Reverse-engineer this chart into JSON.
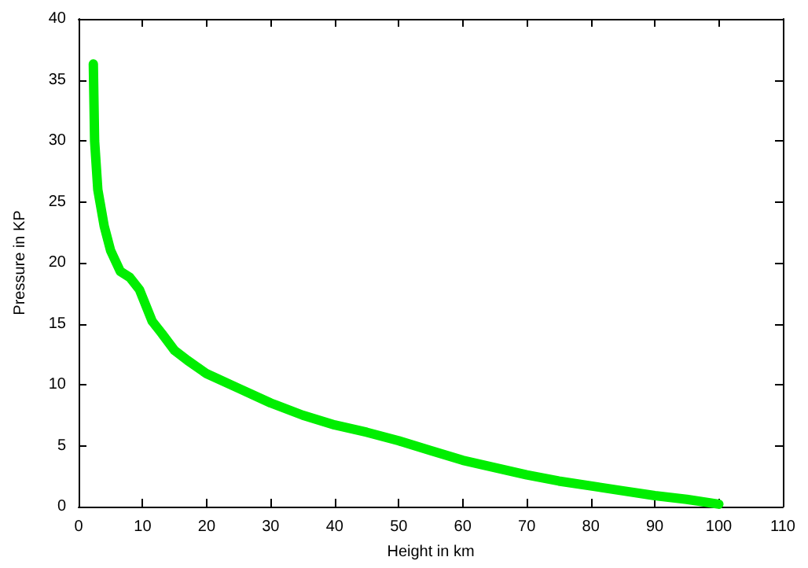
{
  "chart_data": {
    "type": "line",
    "xlabel": "Height in km",
    "ylabel": "Pressure in KP",
    "xlim": [
      0,
      110
    ],
    "xticks": [
      0,
      10,
      20,
      30,
      40,
      50,
      60,
      70,
      80,
      90,
      100,
      110
    ],
    "ylim": [
      0,
      40
    ],
    "yticks": [
      0,
      5,
      10,
      15,
      20,
      25,
      30,
      35,
      40
    ],
    "grid": false,
    "marker": "none",
    "line_style": "solid",
    "series": [
      {
        "color": "#00ee00",
        "x": [
          2.3,
          2.5,
          3,
          4,
          5,
          6.5,
          8,
          9.5,
          10.5,
          11.5,
          13,
          15,
          17,
          20,
          25,
          30,
          35,
          40,
          45,
          50,
          55,
          60,
          65,
          70,
          75,
          80,
          85,
          90,
          95,
          100
        ],
        "values": [
          36.3,
          30,
          26,
          23,
          21,
          19.3,
          18.8,
          17.8,
          16.5,
          15.2,
          14.2,
          12.8,
          12,
          10.9,
          9.7,
          8.5,
          7.5,
          6.7,
          6.1,
          5.4,
          4.6,
          3.8,
          3.2,
          2.6,
          2.1,
          1.7,
          1.3,
          0.9,
          0.6,
          0.2
        ]
      }
    ]
  }
}
